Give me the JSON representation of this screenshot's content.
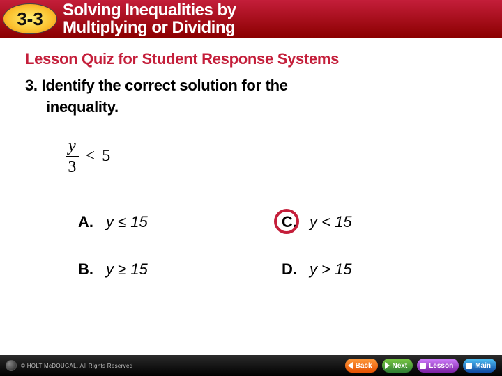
{
  "header": {
    "lesson_number": "3-3",
    "title_line1": "Solving Inequalities by",
    "title_line2": "Multiplying or Dividing"
  },
  "quiz": {
    "subtitle": "Lesson Quiz for Student Response Systems",
    "question_line1": "3. Identify the correct solution for the",
    "question_line2": "inequality."
  },
  "inequality": {
    "numerator": "y",
    "denominator": "3",
    "operator": "<",
    "rhs": "5"
  },
  "answers": {
    "A": {
      "label": "A.",
      "text": "y ≤ 15",
      "correct": false
    },
    "C": {
      "label": "C.",
      "text": "y < 15",
      "correct": true
    },
    "B": {
      "label": "B.",
      "text": "y ≥ 15",
      "correct": false
    },
    "D": {
      "label": "D.",
      "text": "y > 15",
      "correct": false
    }
  },
  "footer": {
    "copyright": "© HOLT McDOUGAL, All Rights Reserved",
    "buttons": {
      "back": "Back",
      "next": "Next",
      "lesson": "Lesson",
      "main": "Main"
    }
  },
  "colors": {
    "accent_red": "#c41e3a",
    "header_grad_top": "#c41e3a",
    "header_grad_bottom": "#8b0000",
    "badge_inner": "#fff176",
    "badge_mid": "#fbc02d",
    "badge_outer": "#f57f17",
    "footer_text": "#bfbfbf"
  }
}
